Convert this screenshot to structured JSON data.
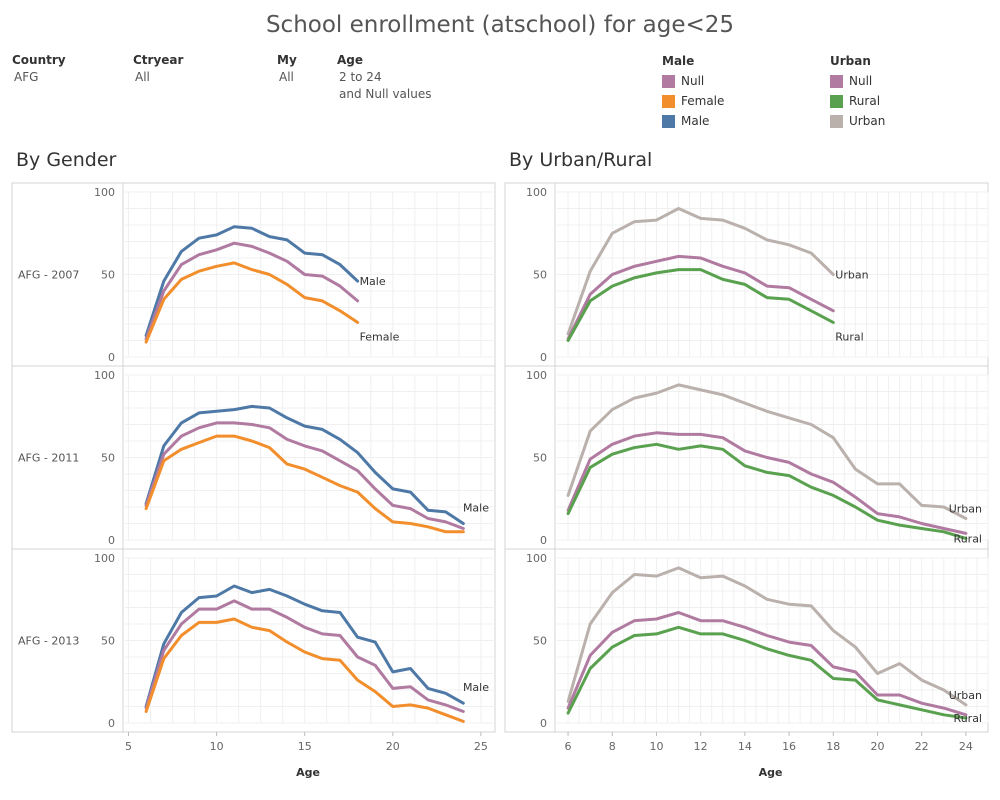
{
  "page": {
    "title": "School enrollment (atschool) for age<25"
  },
  "filters": [
    {
      "label": "Country",
      "value": "AFG",
      "value2": ""
    },
    {
      "label": "Ctryear",
      "value": "All",
      "value2": ""
    },
    {
      "label": "My",
      "value": "All",
      "value2": ""
    },
    {
      "label": "Age",
      "value": "2 to 24",
      "value2": "and Null values"
    }
  ],
  "legends": [
    {
      "title": "Male",
      "items": [
        {
          "label": "Null",
          "color": "#b07aa1"
        },
        {
          "label": "Female",
          "color": "#f28e2b"
        },
        {
          "label": "Male",
          "color": "#4e79a7"
        }
      ]
    },
    {
      "title": "Urban",
      "items": [
        {
          "label": "Null",
          "color": "#b07aa1"
        },
        {
          "label": "Rural",
          "color": "#59a14f"
        },
        {
          "label": "Urban",
          "color": "#bab0ac"
        }
      ]
    }
  ],
  "chart_data": [
    {
      "type": "line",
      "title": "By Gender",
      "xlabel": "Age",
      "ylabel": "",
      "xlim": [
        4.8,
        25.8
      ],
      "ylim": [
        0,
        100
      ],
      "xticks": [
        5,
        10,
        15,
        20,
        25
      ],
      "yticks": [
        0,
        50,
        100
      ],
      "grid": true,
      "rows": [
        {
          "label": "AFG - 2007",
          "series": [
            {
              "name": "Male",
              "color": "#4e79a7",
              "end_label": "Male",
              "x": [
                6,
                7,
                8,
                9,
                10,
                11,
                12,
                13,
                14,
                15,
                16,
                17,
                18
              ],
              "y": [
                13,
                46,
                64,
                72,
                74,
                79,
                78,
                73,
                71,
                63,
                62,
                56,
                46
              ]
            },
            {
              "name": "Null",
              "color": "#b07aa1",
              "end_label": "",
              "x": [
                6,
                7,
                8,
                9,
                10,
                11,
                12,
                13,
                14,
                15,
                16,
                17,
                18
              ],
              "y": [
                11,
                40,
                56,
                62,
                65,
                69,
                67,
                63,
                58,
                50,
                49,
                43,
                34
              ]
            },
            {
              "name": "Female",
              "color": "#f28e2b",
              "end_label": "Female",
              "x": [
                6,
                7,
                8,
                9,
                10,
                11,
                12,
                13,
                14,
                15,
                16,
                17,
                18
              ],
              "y": [
                9,
                35,
                47,
                52,
                55,
                57,
                53,
                50,
                44,
                36,
                34,
                28,
                21
              ]
            }
          ]
        },
        {
          "label": "AFG - 2011",
          "series": [
            {
              "name": "Male",
              "color": "#4e79a7",
              "end_label": "Male",
              "x": [
                6,
                7,
                8,
                9,
                10,
                11,
                12,
                13,
                14,
                15,
                16,
                17,
                18,
                19,
                20,
                21,
                22,
                23,
                24
              ],
              "y": [
                22,
                57,
                71,
                77,
                78,
                79,
                81,
                80,
                74,
                69,
                67,
                61,
                53,
                41,
                31,
                29,
                18,
                17,
                10
              ]
            },
            {
              "name": "Null",
              "color": "#b07aa1",
              "end_label": "",
              "x": [
                6,
                7,
                8,
                9,
                10,
                11,
                12,
                13,
                14,
                15,
                16,
                17,
                18,
                19,
                20,
                21,
                22,
                23,
                24
              ],
              "y": [
                21,
                52,
                63,
                68,
                71,
                71,
                70,
                68,
                61,
                57,
                54,
                48,
                42,
                31,
                21,
                19,
                13,
                11,
                7
              ]
            },
            {
              "name": "Female",
              "color": "#f28e2b",
              "end_label": "",
              "x": [
                6,
                7,
                8,
                9,
                10,
                11,
                12,
                13,
                14,
                15,
                16,
                17,
                18,
                19,
                20,
                21,
                22,
                23,
                24
              ],
              "y": [
                19,
                48,
                55,
                59,
                63,
                63,
                60,
                56,
                46,
                43,
                38,
                33,
                29,
                19,
                11,
                10,
                8,
                5,
                5
              ]
            }
          ]
        },
        {
          "label": "AFG - 2013",
          "series": [
            {
              "name": "Male",
              "color": "#4e79a7",
              "end_label": "Male",
              "x": [
                6,
                7,
                8,
                9,
                10,
                11,
                12,
                13,
                14,
                15,
                16,
                17,
                18,
                19,
                20,
                21,
                22,
                23,
                24
              ],
              "y": [
                10,
                48,
                67,
                76,
                77,
                83,
                79,
                81,
                77,
                72,
                68,
                67,
                52,
                49,
                31,
                33,
                21,
                18,
                12
              ]
            },
            {
              "name": "Null",
              "color": "#b07aa1",
              "end_label": "",
              "x": [
                6,
                7,
                8,
                9,
                10,
                11,
                12,
                13,
                14,
                15,
                16,
                17,
                18,
                19,
                20,
                21,
                22,
                23,
                24
              ],
              "y": [
                9,
                44,
                60,
                69,
                69,
                74,
                69,
                69,
                64,
                58,
                54,
                53,
                40,
                35,
                21,
                22,
                14,
                11,
                7
              ]
            },
            {
              "name": "Female",
              "color": "#f28e2b",
              "end_label": "",
              "x": [
                6,
                7,
                8,
                9,
                10,
                11,
                12,
                13,
                14,
                15,
                16,
                17,
                18,
                19,
                20,
                21,
                22,
                23,
                24
              ],
              "y": [
                7,
                39,
                53,
                61,
                61,
                63,
                58,
                56,
                49,
                43,
                39,
                38,
                26,
                19,
                10,
                11,
                9,
                5,
                1
              ]
            }
          ]
        }
      ]
    },
    {
      "type": "line",
      "title": "By Urban/Rural",
      "xlabel": "Age",
      "ylabel": "",
      "xlim": [
        5.5,
        25
      ],
      "ylim": [
        0,
        100
      ],
      "xticks": [
        6,
        8,
        10,
        12,
        14,
        16,
        18,
        20,
        22,
        24
      ],
      "yticks": [
        0,
        50,
        100
      ],
      "grid": true,
      "rows": [
        {
          "label": "AFG - 2007",
          "series": [
            {
              "name": "Urban",
              "color": "#bab0ac",
              "end_label": "Urban",
              "x": [
                6,
                7,
                8,
                9,
                10,
                11,
                12,
                13,
                14,
                15,
                16,
                17,
                18
              ],
              "y": [
                14,
                52,
                75,
                82,
                83,
                90,
                84,
                83,
                78,
                71,
                68,
                63,
                50
              ]
            },
            {
              "name": "Null",
              "color": "#b07aa1",
              "end_label": "",
              "x": [
                6,
                7,
                8,
                9,
                10,
                11,
                12,
                13,
                14,
                15,
                16,
                17,
                18
              ],
              "y": [
                11,
                38,
                50,
                55,
                58,
                61,
                60,
                55,
                51,
                43,
                42,
                35,
                28
              ]
            },
            {
              "name": "Rural",
              "color": "#59a14f",
              "end_label": "Rural",
              "x": [
                6,
                7,
                8,
                9,
                10,
                11,
                12,
                13,
                14,
                15,
                16,
                17,
                18
              ],
              "y": [
                10,
                34,
                43,
                48,
                51,
                53,
                53,
                47,
                44,
                36,
                35,
                28,
                21
              ]
            }
          ]
        },
        {
          "label": "AFG - 2011",
          "series": [
            {
              "name": "Urban",
              "color": "#bab0ac",
              "end_label": "Urban",
              "x": [
                6,
                7,
                8,
                9,
                10,
                11,
                12,
                13,
                14,
                15,
                16,
                17,
                18,
                19,
                20,
                21,
                22,
                23,
                24
              ],
              "y": [
                27,
                66,
                79,
                86,
                89,
                94,
                91,
                88,
                83,
                78,
                74,
                70,
                62,
                43,
                34,
                34,
                21,
                20,
                13
              ]
            },
            {
              "name": "Null",
              "color": "#b07aa1",
              "end_label": "",
              "x": [
                6,
                7,
                8,
                9,
                10,
                11,
                12,
                13,
                14,
                15,
                16,
                17,
                18,
                19,
                20,
                21,
                22,
                23,
                24
              ],
              "y": [
                18,
                49,
                58,
                63,
                65,
                64,
                64,
                62,
                54,
                50,
                47,
                40,
                35,
                26,
                16,
                14,
                10,
                7,
                4
              ]
            },
            {
              "name": "Rural",
              "color": "#59a14f",
              "end_label": "Rural",
              "x": [
                6,
                7,
                8,
                9,
                10,
                11,
                12,
                13,
                14,
                15,
                16,
                17,
                18,
                19,
                20,
                21,
                22,
                23,
                24
              ],
              "y": [
                16,
                44,
                52,
                56,
                58,
                55,
                57,
                55,
                45,
                41,
                39,
                32,
                27,
                20,
                12,
                9,
                7,
                5,
                1
              ]
            }
          ]
        },
        {
          "label": "AFG - 2013",
          "series": [
            {
              "name": "Urban",
              "color": "#bab0ac",
              "end_label": "Urban",
              "x": [
                6,
                7,
                8,
                9,
                10,
                11,
                12,
                13,
                14,
                15,
                16,
                17,
                18,
                19,
                20,
                21,
                22,
                23,
                24
              ],
              "y": [
                13,
                60,
                79,
                90,
                89,
                94,
                88,
                89,
                83,
                75,
                72,
                71,
                56,
                46,
                30,
                36,
                26,
                20,
                11
              ]
            },
            {
              "name": "Null",
              "color": "#b07aa1",
              "end_label": "",
              "x": [
                6,
                7,
                8,
                9,
                10,
                11,
                12,
                13,
                14,
                15,
                16,
                17,
                18,
                19,
                20,
                21,
                22,
                23,
                24
              ],
              "y": [
                9,
                41,
                55,
                62,
                63,
                67,
                62,
                62,
                58,
                53,
                49,
                47,
                34,
                31,
                17,
                17,
                12,
                9,
                5
              ]
            },
            {
              "name": "Rural",
              "color": "#59a14f",
              "end_label": "Rural",
              "x": [
                6,
                7,
                8,
                9,
                10,
                11,
                12,
                13,
                14,
                15,
                16,
                17,
                18,
                19,
                20,
                21,
                22,
                23,
                24
              ],
              "y": [
                6,
                33,
                46,
                53,
                54,
                58,
                54,
                54,
                50,
                45,
                41,
                38,
                27,
                26,
                14,
                11,
                8,
                5,
                3
              ]
            }
          ]
        }
      ]
    }
  ]
}
